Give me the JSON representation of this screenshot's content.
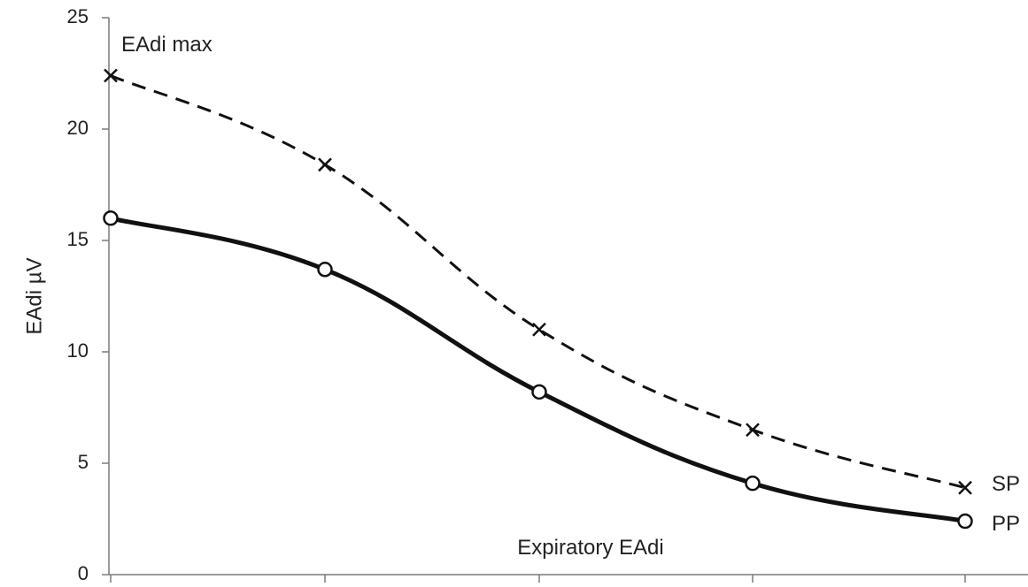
{
  "chart_data": {
    "type": "line",
    "title": "",
    "xlabel": "",
    "ylabel": "EAdi µV",
    "ylim": [
      0,
      25
    ],
    "yticks": [
      0,
      5,
      10,
      15,
      20,
      25
    ],
    "x": [
      1,
      2,
      3,
      4,
      5
    ],
    "grid": false,
    "legend": "none",
    "series": [
      {
        "name": "SP",
        "values": [
          22.4,
          18.4,
          11.0,
          6.5,
          3.9
        ],
        "marker": "x",
        "line_style": "dashed",
        "color": "#111111"
      },
      {
        "name": "PP",
        "values": [
          16.0,
          13.7,
          8.2,
          4.1,
          2.4
        ],
        "marker": "open-circle",
        "line_style": "solid",
        "color": "#111111"
      }
    ],
    "annotations": [
      {
        "text": "EAdi max",
        "near": "first point of SP"
      },
      {
        "text": "Expiratory EAdi",
        "near": "bottom center, above x-axis"
      }
    ]
  }
}
